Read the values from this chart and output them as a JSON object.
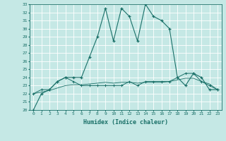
{
  "xlabel": "Humidex (Indice chaleur)",
  "bg_color": "#c5e8e5",
  "line_color": "#1a7068",
  "x": [
    0,
    1,
    2,
    3,
    4,
    5,
    6,
    7,
    8,
    9,
    10,
    11,
    12,
    13,
    14,
    15,
    16,
    17,
    18,
    19,
    20,
    21,
    22,
    23
  ],
  "series1": [
    20,
    22,
    22.5,
    23.5,
    24,
    24,
    24,
    26.5,
    29,
    32.5,
    28.5,
    32.5,
    31.5,
    28.5,
    33,
    31.5,
    31,
    30,
    24,
    23,
    24.5,
    24,
    22.5,
    22.5
  ],
  "series2": [
    22,
    22.5,
    22.5,
    23.5,
    24,
    23.5,
    23,
    23,
    23,
    23,
    23,
    23,
    23.5,
    23,
    23.5,
    23.5,
    23.5,
    23.5,
    24,
    24.5,
    24.5,
    23.5,
    23,
    22.5
  ],
  "series3": [
    22,
    22.2,
    22.4,
    22.7,
    23.0,
    23.1,
    23.1,
    23.2,
    23.3,
    23.4,
    23.3,
    23.4,
    23.4,
    23.3,
    23.4,
    23.4,
    23.4,
    23.5,
    23.7,
    23.9,
    23.9,
    23.5,
    23.2,
    22.5
  ],
  "ylim": [
    20,
    33
  ],
  "yticks": [
    20,
    21,
    22,
    23,
    24,
    25,
    26,
    27,
    28,
    29,
    30,
    31,
    32,
    33
  ],
  "xticks": [
    0,
    1,
    2,
    3,
    4,
    5,
    6,
    7,
    8,
    9,
    10,
    11,
    12,
    13,
    14,
    15,
    16,
    17,
    18,
    19,
    20,
    21,
    22,
    23
  ]
}
